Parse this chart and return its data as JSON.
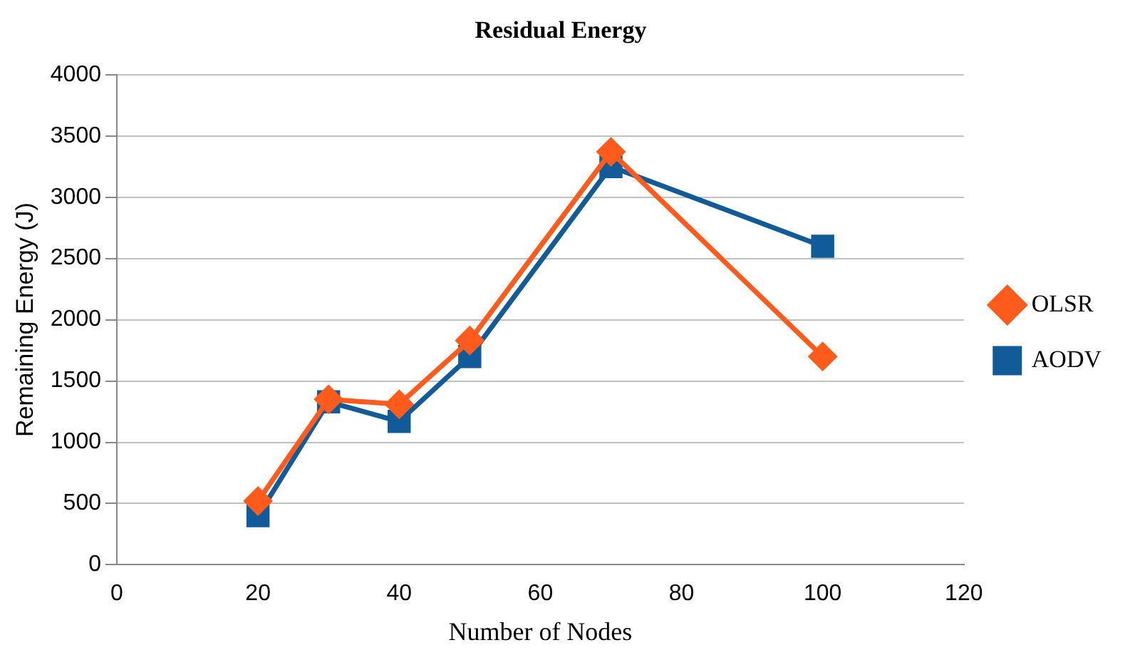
{
  "chart_data": {
    "type": "line",
    "title": "Residual Energy",
    "xlabel": "Number of Nodes",
    "ylabel": "Remaining Energy (J)",
    "x": [
      20,
      30,
      40,
      50,
      70,
      100
    ],
    "series": [
      {
        "name": "AODV",
        "color": "#115c98",
        "marker": "square",
        "values": [
          400,
          1330,
          1170,
          1700,
          3250,
          2600
        ]
      },
      {
        "name": "OLSR",
        "color": "#fe5b1d",
        "marker": "diamond",
        "values": [
          520,
          1350,
          1310,
          1830,
          3370,
          1700
        ]
      }
    ],
    "xlim": [
      0,
      120
    ],
    "xticks": [
      0,
      20,
      40,
      60,
      80,
      100,
      120
    ],
    "ylim": [
      0,
      4000
    ],
    "yticks": [
      0,
      500,
      1000,
      1500,
      2000,
      2500,
      3000,
      3500,
      4000
    ],
    "grid": "y",
    "legend": "right",
    "line_style": "solid"
  }
}
